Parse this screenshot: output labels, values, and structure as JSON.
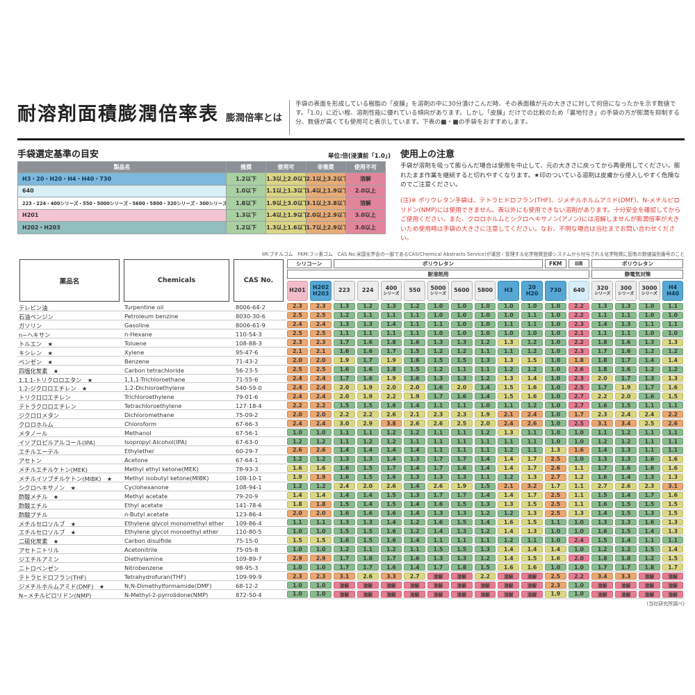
{
  "page": {
    "title": "耐溶剤面積膨潤倍率表",
    "subtitle": "膨潤倍率とは",
    "description": "手袋の表面を形成している樹脂の「皮膜」を溶剤の中に30分漬けこんだ時、その表面積が元の大きさに対して何倍になったかを示す数値です。「1.0」に近い程、溶剤性能に優れている傾向があります。しかし「皮膜」だけでの比較のため「裏地付き」の手袋の方が膨潤を抑制する分、数値が高くても使用可と表示しています。下表の■・■の手袋をおすすめします。"
  },
  "criteria": {
    "heading": "手袋選定基準の目安",
    "unit_label": "単位:倍(浸漬前「1.0」)",
    "columns": [
      "製品名",
      "推奨",
      "使用可",
      "非推奨",
      "使用不可"
    ],
    "rows": [
      {
        "name": "H3・20・H20・H4・H40・730",
        "color": "blue",
        "values": [
          "1.2以下",
          "1.3以上2.0以下",
          "2.1以上3.2以下",
          "溶解"
        ]
      },
      {
        "name": "640",
        "color": "lightblue",
        "values": [
          "1.0以下",
          "1.1以上1.3以下",
          "1.4以上1.9以下",
          "2.0以上"
        ]
      },
      {
        "name": "223・224・400シリーズ・550・5000シリーズ・5600・5800・320シリーズ・300シリーズ・3000シリーズ",
        "color": "white",
        "values": [
          "1.8以下",
          "1.9以上3.0以下",
          "3.1以上3.8以下",
          "溶解"
        ]
      },
      {
        "name": "H201",
        "color": "pink",
        "values": [
          "1.3以下",
          "1.4以上1.9以下",
          "2.0以上2.9以下",
          "3.0以上"
        ]
      },
      {
        "name": "H202・H203",
        "color": "teal",
        "values": [
          "1.2以下",
          "1.3以上1.6以下",
          "1.7以上2.9以下",
          "3.0以上"
        ]
      }
    ]
  },
  "notes": {
    "heading": "使用上の注意",
    "paragraph1": "手袋が溶剤を吸って膨らんだ場合は使用を中止して、元の大きさに戻ってから再使用してください。膨れたまま作業を継続すると切れやすくなります。★印のついている溶剤は皮膚から侵入しやすく危険なのでご注意ください。",
    "paragraph2": "(注)※ ポリウレタン手袋は、テトラヒドロフラン(THF)、ジメチルホルムアミド(DMF)、N-メチルピロリドン(NMP)には使用できません。表以外にも使用できない溶剤があります。十分安全を確認してからご使用ください。また、クロロホルムとシクロヘキサノン(アノン)には溶解しませんが膨潤倍率が大きいため使用時は手袋の大きさに注意してください。なお、不明な場合は当社までお問い合わせください。"
  },
  "legend": "IIR:ブチルゴム　FKM:フッ素ゴム　CAS No:米国化学会の一部であるCAS(Chemical Abstracts Service)が運営・管理する化学物質登録システムから付与される化学物質に固有の数値識別番号のこと",
  "footnote": "(当社研究所調べ)",
  "star_symbol": "★",
  "dissolve_label": "溶解",
  "colors": {
    "recommended_green": "#8abb8e",
    "usable_yellow": "#dad884",
    "not_recommended_orange": "#e9a771",
    "unusable_red": "#e67e92",
    "blue_chip": "#57a7d4",
    "cyan_chip": "#d7edf7",
    "pink_chip": "#f2bdcb"
  },
  "main_table": {
    "fixed_columns": [
      "薬品名",
      "Chemicals",
      "CAS No."
    ],
    "group_row1": [
      {
        "label": "シリコーン",
        "span": 2
      },
      {
        "label": "ポリウレタン",
        "span": 9
      },
      {
        "label": "FKM",
        "span": 1
      },
      {
        "label": "IIR",
        "span": 1
      },
      {
        "label": "ポリウレタン",
        "span": 4
      }
    ],
    "group_row2": [
      {
        "label": "耐溶剤用",
        "span": 13
      },
      {
        "label": "静電気対策",
        "span": 4
      }
    ],
    "products": [
      {
        "l1": "H201",
        "style": "pink",
        "rule": "h201"
      },
      {
        "l1": "H202",
        "l2": "H203",
        "style": "blue",
        "rule": "h202"
      },
      {
        "l1": "223",
        "style": "grey",
        "rule": "series"
      },
      {
        "l1": "224",
        "style": "grey",
        "rule": "series"
      },
      {
        "l1": "400",
        "l2": "シリーズ",
        "small": true,
        "style": "grey",
        "rule": "series"
      },
      {
        "l1": "550",
        "style": "grey",
        "rule": "series"
      },
      {
        "l1": "5000",
        "l2": "シリーズ",
        "small": true,
        "style": "grey",
        "rule": "series"
      },
      {
        "l1": "5600",
        "style": "grey",
        "rule": "series"
      },
      {
        "l1": "5800",
        "style": "grey",
        "rule": "series"
      },
      {
        "l1": "H3",
        "style": "blue",
        "rule": "h3"
      },
      {
        "l1": "20",
        "l2": "H20",
        "style": "blue",
        "rule": "h3"
      },
      {
        "l1": "730",
        "style": "blue",
        "rule": "h3"
      },
      {
        "l1": "640",
        "style": "cyan",
        "rule": "r640"
      },
      {
        "l1": "320",
        "l2": "シリーズ",
        "small": true,
        "style": "grey",
        "rule": "series"
      },
      {
        "l1": "300",
        "l2": "シリーズ",
        "small": true,
        "style": "grey",
        "rule": "series"
      },
      {
        "l1": "3000",
        "l2": "シリーズ",
        "small": true,
        "style": "grey",
        "rule": "series"
      },
      {
        "l1": "H4",
        "l2": "H40",
        "style": "blue",
        "rule": "h3"
      }
    ],
    "rules": {
      "h201": [
        1.3,
        1.9,
        2.9
      ],
      "h202": [
        1.2,
        1.6,
        2.9
      ],
      "series": [
        1.8,
        3.0,
        3.8
      ],
      "h3": [
        1.2,
        2.0,
        3.2
      ],
      "r640": [
        1.0,
        1.3,
        1.9
      ]
    },
    "rows": [
      {
        "jp": "テレピン油",
        "en": "Turpentine oil",
        "cas": "8006-64-2",
        "star": false,
        "v": [
          2.3,
          2.3,
          1.3,
          1.2,
          1.3,
          1.2,
          1.0,
          1.0,
          1.0,
          1.0,
          1.0,
          1.0,
          2.2,
          1.3,
          1.3,
          1.0,
          1.1
        ]
      },
      {
        "jp": "石油ベンジン",
        "en": "Petroleum benzine",
        "cas": "8030-30-6",
        "star": false,
        "v": [
          2.5,
          2.5,
          1.2,
          1.1,
          1.1,
          1.1,
          1.0,
          1.0,
          1.0,
          1.0,
          1.1,
          1.0,
          2.2,
          1.1,
          1.1,
          1.0,
          1.0
        ]
      },
      {
        "jp": "ガソリン",
        "en": "Gasoline",
        "cas": "8006-61-9",
        "star": false,
        "v": [
          2.4,
          2.4,
          1.3,
          1.3,
          1.4,
          1.1,
          1.1,
          1.0,
          1.0,
          1.1,
          1.1,
          1.0,
          2.3,
          1.4,
          1.3,
          1.1,
          1.1
        ]
      },
      {
        "jp": "n−ヘキサン",
        "en": "n-Hexane",
        "cas": "110-54-3",
        "star": false,
        "v": [
          2.5,
          2.5,
          1.1,
          1.1,
          1.1,
          1.1,
          1.0,
          1.0,
          1.0,
          1.0,
          1.0,
          1.0,
          2.1,
          1.1,
          1.1,
          1.0,
          1.0
        ]
      },
      {
        "jp": "トルエン",
        "en": "Toluene",
        "cas": "108-88-3",
        "star": true,
        "v": [
          2.3,
          2.3,
          1.7,
          1.6,
          1.8,
          1.6,
          1.3,
          1.3,
          1.2,
          1.3,
          1.2,
          1.0,
          2.2,
          1.8,
          1.6,
          1.3,
          1.3
        ]
      },
      {
        "jp": "キシレン",
        "en": "Xylene",
        "cas": "95-47-6",
        "star": true,
        "v": [
          2.1,
          2.1,
          1.6,
          1.6,
          1.7,
          1.5,
          1.2,
          1.2,
          1.1,
          1.1,
          1.2,
          1.0,
          2.3,
          1.7,
          1.6,
          1.2,
          1.2
        ]
      },
      {
        "jp": "ベンゼン",
        "en": "Benzene",
        "cas": "71-43-2",
        "star": true,
        "v": [
          2.0,
          2.0,
          1.9,
          1.7,
          1.9,
          1.6,
          1.5,
          1.5,
          1.3,
          1.3,
          1.5,
          1.0,
          1.8,
          1.8,
          1.7,
          1.4,
          1.4
        ]
      },
      {
        "jp": "四塩化炭素",
        "en": "Carbon tetrachloride",
        "cas": "56-23-5",
        "star": true,
        "v": [
          2.5,
          2.5,
          1.6,
          1.6,
          1.8,
          1.5,
          1.2,
          1.1,
          1.1,
          1.2,
          1.2,
          1.0,
          2.6,
          1.8,
          1.6,
          1.2,
          1.2
        ]
      },
      {
        "jp": "1.1.1-トリクロロエタン",
        "en": "1,1,1-Trichloroethane",
        "cas": "71-55-6",
        "star": true,
        "v": [
          2.4,
          2.4,
          1.7,
          1.6,
          1.9,
          1.6,
          1.3,
          1.3,
          1.2,
          1.3,
          1.4,
          1.0,
          2.3,
          2.0,
          1.7,
          1.3,
          1.3
        ]
      },
      {
        "jp": "1.2-ジクロロエチレン",
        "en": "1.2-Dichloroethylene",
        "cas": "540-59-0",
        "star": true,
        "v": [
          2.4,
          2.4,
          2.0,
          1.9,
          2.0,
          2.0,
          1.6,
          2.0,
          1.4,
          1.5,
          1.6,
          1.0,
          2.5,
          1.7,
          1.9,
          1.7,
          1.6
        ]
      },
      {
        "jp": "トリクロロエチレン",
        "en": "Trichloroethylene",
        "cas": "79-01-6",
        "star": false,
        "v": [
          2.4,
          2.4,
          2.0,
          1.9,
          2.2,
          1.9,
          1.7,
          1.6,
          1.4,
          1.5,
          1.6,
          1.0,
          2.7,
          2.2,
          2.0,
          1.6,
          1.5
        ]
      },
      {
        "jp": "テトラクロロエチレン",
        "en": "Tetrachloroethylene",
        "cas": "127-18-4",
        "star": false,
        "v": [
          2.2,
          2.2,
          1.5,
          1.5,
          1.6,
          1.4,
          1.1,
          1.1,
          1.0,
          1.1,
          1.2,
          1.0,
          2.7,
          1.6,
          1.5,
          1.1,
          1.1
        ]
      },
      {
        "jp": "ジクロロメタン",
        "en": "Dichloromethane",
        "cas": "75-09-2",
        "star": false,
        "v": [
          2.0,
          2.0,
          2.2,
          2.2,
          2.6,
          2.1,
          2.3,
          2.3,
          1.9,
          2.1,
          2.4,
          1.0,
          1.7,
          2.3,
          2.4,
          2.4,
          2.2
        ]
      },
      {
        "jp": "クロロホルム",
        "en": "Chloroform",
        "cas": "67-66-3",
        "star": false,
        "v": [
          2.4,
          2.4,
          3.0,
          2.9,
          3.8,
          2.6,
          2.6,
          2.5,
          2.0,
          2.4,
          2.6,
          1.0,
          2.5,
          3.1,
          3.4,
          2.5,
          2.6
        ]
      },
      {
        "jp": "メタノール",
        "en": "Methanol",
        "cas": "67-56-1",
        "star": false,
        "v": [
          1.0,
          1.0,
          1.1,
          1.1,
          1.2,
          1.2,
          1.1,
          1.1,
          1.2,
          1.3,
          1.1,
          1.0,
          1.0,
          1.1,
          1.2,
          1.1,
          1.1
        ]
      },
      {
        "jp": "イソプロピルアルコール(IPA)",
        "en": "Isopropyl Alcohol(IPA)",
        "cas": "67-63-0",
        "star": false,
        "v": [
          1.2,
          1.2,
          1.1,
          1.2,
          1.2,
          1.1,
          1.1,
          1.1,
          1.1,
          1.1,
          1.1,
          1.0,
          1.0,
          1.2,
          1.2,
          1.1,
          1.1
        ]
      },
      {
        "jp": "エチルエーテル",
        "en": "Ethylether",
        "cas": "60-29-7",
        "star": false,
        "v": [
          2.6,
          2.6,
          1.4,
          1.4,
          1.4,
          1.4,
          1.1,
          1.1,
          1.1,
          1.2,
          1.1,
          1.3,
          1.6,
          1.4,
          1.3,
          1.1,
          1.1
        ]
      },
      {
        "jp": "アセトン",
        "en": "Acetone",
        "cas": "67-64-1",
        "star": false,
        "v": [
          1.2,
          1.2,
          1.3,
          1.3,
          1.4,
          1.3,
          1.7,
          1.7,
          1.4,
          1.4,
          1.7,
          2.5,
          1.0,
          1.3,
          1.3,
          1.6,
          1.6
        ]
      },
      {
        "jp": "メチルエチルケトン(MEK)",
        "en": "Methyl ethyl ketone(MEK)",
        "cas": "78-93-3",
        "star": false,
        "v": [
          1.6,
          1.6,
          1.6,
          1.5,
          1.7,
          1.4,
          1.7,
          1.6,
          1.4,
          1.4,
          1.7,
          2.6,
          1.1,
          1.7,
          1.6,
          1.6,
          1.6
        ]
      },
      {
        "jp": "メチルイソブチルケトン(MIBK)",
        "en": "Methyl isobutyl ketone(MIBK)",
        "cas": "108-10-1",
        "star": true,
        "v": [
          1.9,
          1.9,
          1.6,
          1.5,
          1.6,
          1.3,
          1.3,
          1.3,
          1.1,
          1.2,
          1.3,
          2.7,
          1.2,
          1.6,
          1.4,
          1.3,
          1.3
        ]
      },
      {
        "jp": "シクロヘキサノン",
        "en": "Cyclohexanone",
        "cas": "108-94-1",
        "star": true,
        "v": [
          1.2,
          1.2,
          2.4,
          2.0,
          2.6,
          1.4,
          2.6,
          1.9,
          1.5,
          2.1,
          3.2,
          1.7,
          1.1,
          2.7,
          2.6,
          2.3,
          3.1
        ]
      },
      {
        "jp": "酢酸メチル",
        "en": "Methyl acetate",
        "cas": "79-20-9",
        "star": true,
        "v": [
          1.4,
          1.4,
          1.4,
          1.4,
          1.5,
          1.3,
          1.7,
          1.7,
          1.4,
          1.4,
          1.7,
          2.5,
          1.1,
          1.5,
          1.4,
          1.7,
          1.6
        ]
      },
      {
        "jp": "酢酸エチル",
        "en": "Ethyl acetate",
        "cas": "141-78-6",
        "star": false,
        "v": [
          1.8,
          1.8,
          1.5,
          1.4,
          1.5,
          1.4,
          1.6,
          1.5,
          1.3,
          1.3,
          1.5,
          2.5,
          1.1,
          1.6,
          1.5,
          1.5,
          1.5
        ]
      },
      {
        "jp": "酢酸ブチル",
        "en": "n-Butyl acetate",
        "cas": "123-86-4",
        "star": false,
        "v": [
          2.0,
          2.0,
          1.6,
          1.6,
          1.6,
          1.4,
          1.3,
          1.3,
          1.2,
          1.2,
          1.3,
          2.5,
          1.3,
          1.4,
          1.5,
          1.3,
          1.5
        ]
      },
      {
        "jp": "メチルセロソルブ",
        "en": "Ethylene glycol monomethyl ether",
        "cas": "109-86-4",
        "star": true,
        "v": [
          1.1,
          1.1,
          1.3,
          1.3,
          1.4,
          1.2,
          1.6,
          1.5,
          1.4,
          1.6,
          1.5,
          1.1,
          1.0,
          1.3,
          1.3,
          1.6,
          1.3
        ]
      },
      {
        "jp": "エチルセロソルブ",
        "en": "Ethylene glycol monoethyl ether",
        "cas": "110-80-5",
        "star": true,
        "v": [
          1.0,
          1.0,
          1.5,
          1.5,
          1.6,
          1.2,
          1.4,
          1.3,
          1.2,
          1.4,
          1.3,
          1.0,
          1.0,
          1.6,
          1.5,
          1.4,
          1.3
        ]
      },
      {
        "jp": "二硫化炭素",
        "en": "Carbon disulfide",
        "cas": "75-15-0",
        "star": true,
        "v": [
          1.5,
          1.5,
          1.6,
          1.5,
          1.6,
          1.4,
          1.1,
          1.1,
          1.1,
          1.2,
          1.1,
          1.0,
          2.4,
          1.5,
          1.4,
          1.1,
          1.1
        ]
      },
      {
        "jp": "アセトニトリル",
        "en": "Acetonitrile",
        "cas": "75-05-8",
        "star": false,
        "v": [
          1.0,
          1.0,
          1.2,
          1.1,
          1.2,
          1.1,
          1.5,
          1.5,
          1.3,
          1.4,
          1.4,
          1.4,
          1.0,
          1.2,
          1.2,
          1.5,
          1.4
        ]
      },
      {
        "jp": "ジエチルアミン",
        "en": "Diethylamine",
        "cas": "109-89-7",
        "star": false,
        "v": [
          2.9,
          2.9,
          1.7,
          1.8,
          1.7,
          1.6,
          1.3,
          1.3,
          1.2,
          1.4,
          1.5,
          1.6,
          2.0,
          1.8,
          1.8,
          1.2,
          1.5
        ]
      },
      {
        "jp": "ニトロベンゼン",
        "en": "Nitrobenzene",
        "cas": "98-95-3",
        "star": false,
        "v": [
          1.0,
          1.0,
          1.7,
          1.7,
          1.6,
          1.4,
          1.7,
          1.8,
          1.5,
          1.6,
          1.6,
          1.0,
          1.0,
          1.7,
          1.7,
          1.8,
          1.7
        ]
      },
      {
        "jp": "テトラヒドロフラン(THF)",
        "en": "Tetrahydrofuran(THF)",
        "cas": "109-99-9",
        "star": false,
        "v": [
          2.3,
          2.3,
          3.1,
          2.6,
          3.3,
          2.7,
          "溶解",
          "溶解",
          2.2,
          "溶解",
          "溶解",
          2.5,
          2.2,
          3.4,
          3.3,
          "溶解",
          "溶解"
        ]
      },
      {
        "jp": "ジメチルホルムアミド(DMF)",
        "en": "N,N-Dimethylformamide(DMF)",
        "cas": "68-12-2",
        "star": true,
        "v": [
          1.0,
          1.0,
          "溶解",
          "溶解",
          "溶解",
          "溶解",
          "溶解",
          "溶解",
          "溶解",
          "溶解",
          "溶解",
          2.3,
          1.0,
          "溶解",
          "溶解",
          "溶解",
          "溶解"
        ]
      },
      {
        "jp": "N−メチルピロリドン(NMP)",
        "en": "N-Methyl-2-pyrrolidone(NMP)",
        "cas": "872-50-4",
        "star": false,
        "v": [
          1.0,
          1.0,
          "溶解",
          "溶解",
          "溶解",
          "溶解",
          "溶解",
          "溶解",
          "溶解",
          "溶解",
          "溶解",
          1.9,
          1.0,
          "溶解",
          "溶解",
          "溶解",
          "溶解"
        ]
      }
    ]
  }
}
